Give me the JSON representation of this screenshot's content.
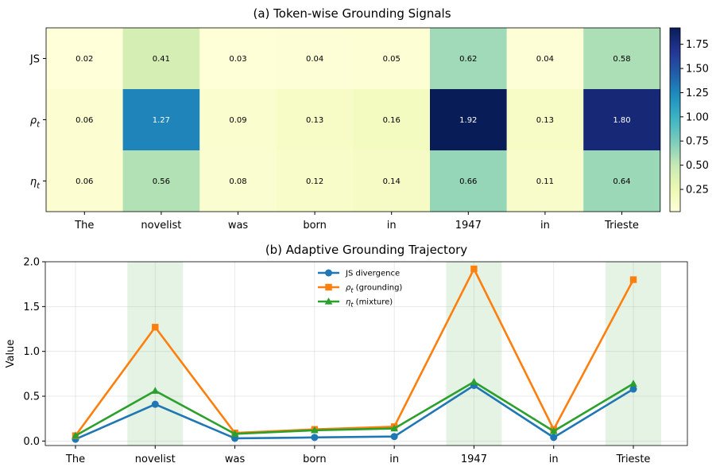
{
  "chart_data": [
    {
      "type": "heatmap",
      "title": "(a) Token-wise Grounding Signals",
      "x_tick_labels": [
        "The",
        "novelist",
        "was",
        "born",
        "in",
        "1947",
        "in",
        "Trieste"
      ],
      "rows": [
        {
          "label": "JS",
          "display": "JS",
          "values": [
            0.02,
            0.41,
            0.03,
            0.04,
            0.05,
            0.62,
            0.04,
            0.58
          ]
        },
        {
          "label": "ρt",
          "display": "ρ",
          "subscript": "t",
          "values": [
            0.06,
            1.27,
            0.09,
            0.13,
            0.16,
            1.92,
            0.13,
            1.8
          ]
        },
        {
          "label": "ηt",
          "display": "η",
          "subscript": "t",
          "values": [
            0.06,
            0.56,
            0.08,
            0.12,
            0.14,
            0.66,
            0.11,
            0.64
          ]
        }
      ],
      "colormap": "YlGnBu",
      "value_range": [
        0.02,
        1.92
      ],
      "colorbar_ticks": [
        "0.25",
        "0.50",
        "0.75",
        "1.00",
        "1.25",
        "1.50",
        "1.75"
      ]
    },
    {
      "type": "line",
      "title": "(b) Adaptive Grounding Trajectory",
      "ylabel": "Value",
      "x": [
        "The",
        "novelist",
        "was",
        "born",
        "in",
        "1947",
        "in",
        "Trieste"
      ],
      "ylim": [
        -0.05,
        2.0
      ],
      "y_ticks": [
        "0.0",
        "0.5",
        "1.0",
        "1.5",
        "2.0"
      ],
      "grid": true,
      "legend_position": "top-center",
      "highlighted_tokens": [
        "novelist",
        "1947",
        "Trieste"
      ],
      "series": [
        {
          "name": "JS divergence",
          "name_main": "JS divergence",
          "marker": "circle",
          "color": "#1f77b4",
          "values": [
            0.02,
            0.41,
            0.03,
            0.04,
            0.05,
            0.62,
            0.04,
            0.58
          ]
        },
        {
          "name": "ρt (grounding)",
          "name_main": "ρ",
          "name_sub": "t",
          "name_rest": " (grounding)",
          "marker": "square",
          "color": "#ff7f0e",
          "values": [
            0.06,
            1.27,
            0.09,
            0.13,
            0.16,
            1.92,
            0.13,
            1.8
          ]
        },
        {
          "name": "ηt (mixture)",
          "name_main": "η",
          "name_sub": "t",
          "name_rest": " (mixture)",
          "marker": "triangle",
          "color": "#2ca02c",
          "values": [
            0.06,
            0.56,
            0.08,
            0.12,
            0.14,
            0.66,
            0.11,
            0.64
          ]
        }
      ]
    }
  ]
}
